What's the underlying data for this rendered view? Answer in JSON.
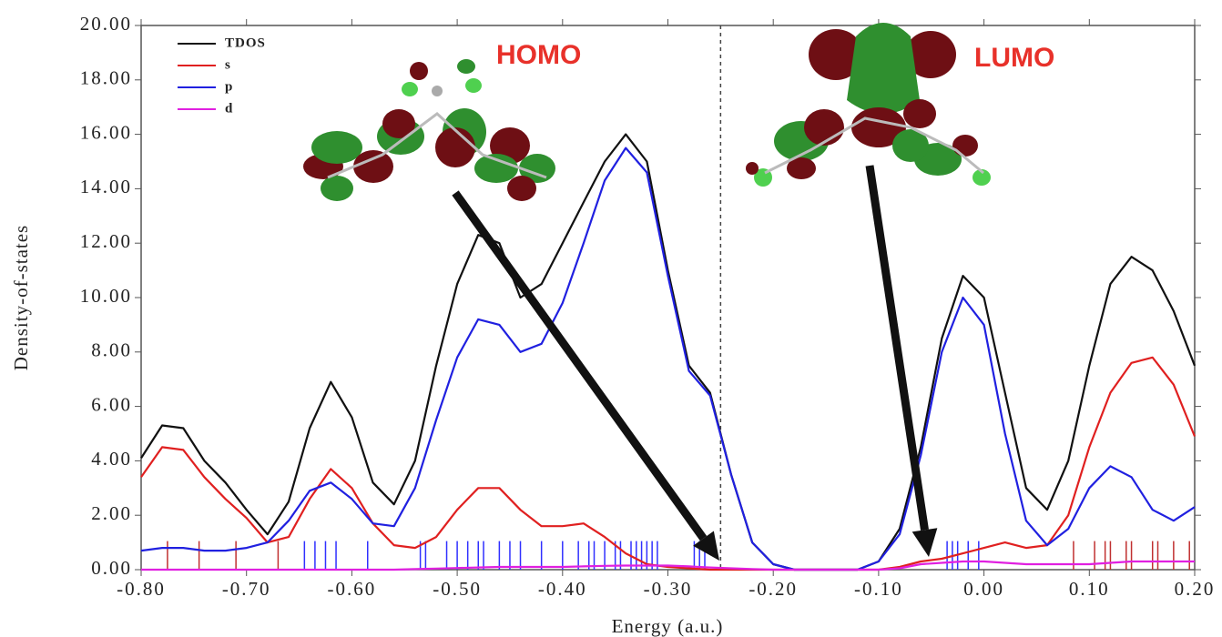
{
  "chart_data": {
    "type": "line",
    "xlabel": "Energy (a.u.)",
    "ylabel": "Density-of-states",
    "xlim": [
      -0.8,
      0.2
    ],
    "ylim": [
      0,
      20
    ],
    "xticks": [
      {
        "value": -0.8,
        "label": "-0.80"
      },
      {
        "value": -0.7,
        "label": "-0.70"
      },
      {
        "value": -0.6,
        "label": "-0.60"
      },
      {
        "value": -0.5,
        "label": "-0.50"
      },
      {
        "value": -0.4,
        "label": "-0.40"
      },
      {
        "value": -0.3,
        "label": "-0.30"
      },
      {
        "value": -0.2,
        "label": "-0.20"
      },
      {
        "value": -0.1,
        "label": "-0.10"
      },
      {
        "value": 0,
        "label": "0.00"
      },
      {
        "value": 0.1,
        "label": "0.10"
      },
      {
        "value": 0.2,
        "label": "0.20"
      }
    ],
    "yticks": [
      {
        "value": 0,
        "label": "0.00"
      },
      {
        "value": 2,
        "label": "2.00"
      },
      {
        "value": 4,
        "label": "4.00"
      },
      {
        "value": 6,
        "label": "6.00"
      },
      {
        "value": 8,
        "label": "8.00"
      },
      {
        "value": 10,
        "label": "10.00"
      },
      {
        "value": 12,
        "label": "12.00"
      },
      {
        "value": 14,
        "label": "14.00"
      },
      {
        "value": 16,
        "label": "16.00"
      },
      {
        "value": 18,
        "label": "18.00"
      },
      {
        "value": 20,
        "label": "20.00"
      }
    ],
    "legend": "upper left",
    "x": [
      -0.8,
      -0.78,
      -0.76,
      -0.74,
      -0.72,
      -0.7,
      -0.68,
      -0.66,
      -0.64,
      -0.62,
      -0.6,
      -0.58,
      -0.56,
      -0.54,
      -0.52,
      -0.5,
      -0.48,
      -0.46,
      -0.44,
      -0.42,
      -0.4,
      -0.38,
      -0.36,
      -0.34,
      -0.32,
      -0.3,
      -0.28,
      -0.26,
      -0.24,
      -0.22,
      -0.2,
      -0.18,
      -0.16,
      -0.14,
      -0.12,
      -0.1,
      -0.08,
      -0.06,
      -0.04,
      -0.02,
      0,
      0.02,
      0.04,
      0.06,
      0.08,
      0.1,
      0.12,
      0.14,
      0.16,
      0.18,
      0.2
    ],
    "series": [
      {
        "name": "TDOS",
        "color": "#111111",
        "values": [
          4.1,
          5.3,
          5.2,
          4.0,
          3.2,
          2.2,
          1.3,
          2.5,
          5.2,
          6.9,
          5.6,
          3.2,
          2.4,
          4.0,
          7.5,
          10.5,
          12.3,
          12.0,
          10.0,
          10.5,
          12.0,
          13.5,
          15.0,
          16.0,
          15.0,
          11.0,
          7.5,
          6.5,
          3.5,
          1.0,
          0.2,
          0,
          0,
          0,
          0,
          0.3,
          1.5,
          4.5,
          8.5,
          10.8,
          10.0,
          6.5,
          3.0,
          2.2,
          4.0,
          7.5,
          10.5,
          11.5,
          11.0,
          9.5,
          7.5
        ]
      },
      {
        "name": "s",
        "color": "#e02020",
        "values": [
          3.4,
          4.5,
          4.4,
          3.4,
          2.6,
          1.9,
          1.0,
          1.2,
          2.6,
          3.7,
          3.0,
          1.7,
          0.9,
          0.8,
          1.2,
          2.2,
          3.0,
          3.0,
          2.2,
          1.6,
          1.6,
          1.7,
          1.2,
          0.6,
          0.2,
          0.1,
          0.05,
          0,
          0,
          0,
          0,
          0,
          0,
          0,
          0,
          0,
          0.1,
          0.3,
          0.4,
          0.6,
          0.8,
          1.0,
          0.8,
          0.9,
          2.0,
          4.5,
          6.5,
          7.6,
          7.8,
          6.8,
          4.9
        ]
      },
      {
        "name": "p",
        "color": "#2020e0",
        "values": [
          0.7,
          0.8,
          0.8,
          0.7,
          0.7,
          0.8,
          1.0,
          1.8,
          2.9,
          3.2,
          2.6,
          1.7,
          1.6,
          3.0,
          5.5,
          7.8,
          9.2,
          9.0,
          8.0,
          8.3,
          9.8,
          12.0,
          14.3,
          15.5,
          14.6,
          10.8,
          7.3,
          6.4,
          3.5,
          1.0,
          0.2,
          0,
          0,
          0,
          0,
          0.3,
          1.3,
          4.2,
          8.0,
          10.0,
          9.0,
          5.0,
          1.8,
          0.9,
          1.5,
          3.0,
          3.8,
          3.4,
          2.2,
          1.8,
          2.3
        ]
      },
      {
        "name": "d",
        "color": "#e020e0",
        "values": [
          0,
          0,
          0,
          0,
          0,
          0,
          0,
          0,
          0,
          0,
          0,
          0,
          0,
          0.02,
          0.04,
          0.06,
          0.08,
          0.1,
          0.1,
          0.1,
          0.1,
          0.12,
          0.14,
          0.15,
          0.15,
          0.15,
          0.12,
          0.08,
          0.05,
          0.02,
          0,
          0,
          0,
          0,
          0,
          0,
          0.05,
          0.2,
          0.25,
          0.3,
          0.3,
          0.25,
          0.2,
          0.2,
          0.2,
          0.2,
          0.25,
          0.3,
          0.3,
          0.3,
          0.3
        ]
      }
    ],
    "stick_height": 1.05,
    "sticks": [
      {
        "color": "#3030ff",
        "x": [
          -0.645,
          -0.635,
          -0.625,
          -0.615,
          -0.585,
          -0.535,
          -0.53,
          -0.51,
          -0.5,
          -0.49,
          -0.48,
          -0.475,
          -0.46,
          -0.45,
          -0.44,
          -0.42,
          -0.4,
          -0.385,
          -0.375,
          -0.37,
          -0.36,
          -0.35,
          -0.345,
          -0.335,
          -0.33,
          -0.325,
          -0.32,
          -0.315,
          -0.31,
          -0.275,
          -0.27,
          -0.265,
          -0.035,
          -0.03,
          -0.025,
          -0.015,
          -0.005
        ]
      },
      {
        "color": "#c03030",
        "x": [
          -0.775,
          -0.745,
          -0.71,
          -0.67,
          0.085,
          0.105,
          0.115,
          0.12,
          0.135,
          0.14,
          0.16,
          0.165,
          0.18,
          0.195
        ]
      }
    ],
    "divider_x": -0.25,
    "annotations": [
      "HOMO",
      "LUMO"
    ]
  }
}
